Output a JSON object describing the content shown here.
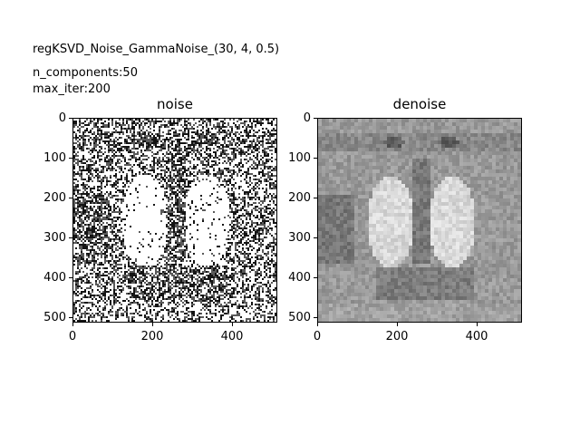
{
  "header": {
    "title": "regKSVD_Noise_GammaNoise_(30, 4, 0.5)",
    "params": [
      "n_components:50",
      "max_iter:200"
    ]
  },
  "panels": [
    {
      "key": "noise",
      "title": "noise",
      "y_ticks": [
        "0",
        "100",
        "200",
        "300",
        "400",
        "500"
      ],
      "x_ticks": [
        "0",
        "200",
        "400"
      ],
      "style": "speckle"
    },
    {
      "key": "denoise",
      "title": "denoise",
      "y_ticks": [
        "0",
        "100",
        "200",
        "300",
        "400",
        "500"
      ],
      "x_ticks": [
        "0",
        "200",
        "400"
      ],
      "style": "smooth"
    }
  ],
  "colors": {
    "background": "#ffffff",
    "axis": "#000000"
  }
}
